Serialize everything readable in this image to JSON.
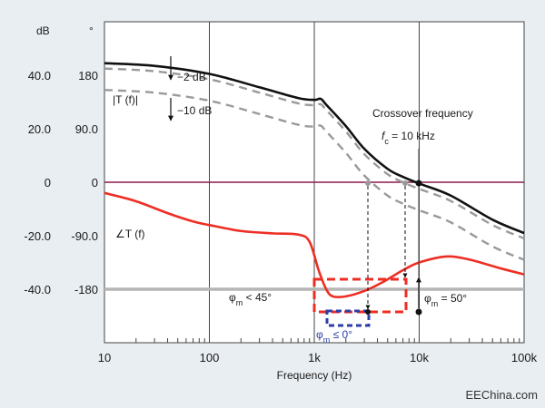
{
  "chart_data": {
    "type": "line",
    "title": "",
    "xlabel": "Frequency (Hz)",
    "x_scale": "log",
    "xlim": [
      10,
      100000
    ],
    "x_ticks": [
      {
        "value": 10,
        "label": "10"
      },
      {
        "value": 100,
        "label": "100"
      },
      {
        "value": 1000,
        "label": "1k"
      },
      {
        "value": 10000,
        "label": "10k"
      },
      {
        "value": 100000,
        "label": "100k"
      }
    ],
    "left_axis": {
      "unit": "dB",
      "lim": [
        -60,
        60
      ],
      "ticks": [
        {
          "value": 40,
          "label": "40.0"
        },
        {
          "value": 20,
          "label": "20.0"
        },
        {
          "value": 0,
          "label": "0"
        },
        {
          "value": -20,
          "label": "-20.0"
        },
        {
          "value": -40,
          "label": "-40.0"
        }
      ]
    },
    "right_axis": {
      "unit": "°",
      "lim": [
        -270,
        270
      ],
      "ticks": [
        {
          "value": 180,
          "label": "180"
        },
        {
          "value": 90,
          "label": "90.0"
        },
        {
          "value": 0,
          "label": "0"
        },
        {
          "value": -90,
          "label": "-90.0"
        },
        {
          "value": -180,
          "label": "-180"
        }
      ]
    },
    "series": [
      {
        "name": "|T (f)|",
        "axis": "dB",
        "color": "#111111",
        "style": "solid",
        "x": [
          10,
          30,
          100,
          300,
          700,
          1000,
          1150,
          1300,
          2000,
          3000,
          5000,
          7000,
          10000,
          20000,
          50000,
          100000
        ],
        "y": [
          44.5,
          43.5,
          40.5,
          35.5,
          31.5,
          30.8,
          31.2,
          29,
          21,
          12.5,
          5,
          2,
          -0.5,
          -5,
          -14,
          -19
        ]
      },
      {
        "name": "",
        "axis": "dB",
        "color": "#9a9a9a",
        "style": "dashed",
        "x": [
          10,
          30,
          100,
          300,
          700,
          1000,
          1150,
          1300,
          2000,
          3000,
          5000,
          7000,
          10000,
          20000,
          50000,
          100000
        ],
        "y": [
          42.5,
          41.5,
          38.5,
          33.5,
          29.5,
          28.8,
          29.2,
          27,
          19,
          10.5,
          3,
          0,
          -2.5,
          -7,
          -16,
          -21
        ]
      },
      {
        "name": "",
        "axis": "dB",
        "color": "#9a9a9a",
        "style": "dashed",
        "x": [
          10,
          30,
          100,
          300,
          700,
          1000,
          1150,
          1300,
          2000,
          3000,
          5000,
          7000,
          10000,
          20000,
          50000,
          100000
        ],
        "y": [
          34.5,
          33.5,
          30.5,
          25.5,
          21.5,
          20.8,
          21.2,
          19,
          11,
          2.5,
          -5,
          -8,
          -10.5,
          -15,
          -24,
          -29
        ]
      },
      {
        "name": "∠T (f)",
        "axis": "deg",
        "color": "#ee2e24",
        "style": "solid",
        "x": [
          10,
          20,
          40,
          70,
          100,
          200,
          400,
          700,
          900,
          1100,
          1300,
          1500,
          2000,
          3000,
          4500,
          7000,
          10000,
          18000,
          30000,
          60000,
          100000
        ],
        "y": [
          -18,
          -32,
          -52,
          -66,
          -72,
          -82,
          -86,
          -88,
          -100,
          -148,
          -180,
          -192,
          -192,
          -183,
          -168,
          -148,
          -135,
          -125,
          -130,
          -145,
          -155
        ]
      }
    ],
    "reference_lines": [
      {
        "axis": "dB",
        "value": 0,
        "color": "#8b1a4a"
      },
      {
        "axis": "deg",
        "value": -180,
        "color": "#b5b5b5"
      }
    ],
    "annotations": {
      "unit_db": "dB",
      "unit_deg": "°",
      "minus2db": "−2 dB",
      "minus10db": "−10 dB",
      "mag_label": "|T (f)|",
      "phase_label": "∠T (f)",
      "crossover_title": "Crossover frequency",
      "fc_symbol": "f",
      "fc_sub": "c",
      "fc_value": " = 10 kHz",
      "phi": "φ",
      "phi_sub": "m",
      "pm_lt": " < 45°",
      "pm_le": " ≤ 0°",
      "pm_eq": " = 50°",
      "watermark": "EEChina.com"
    }
  }
}
